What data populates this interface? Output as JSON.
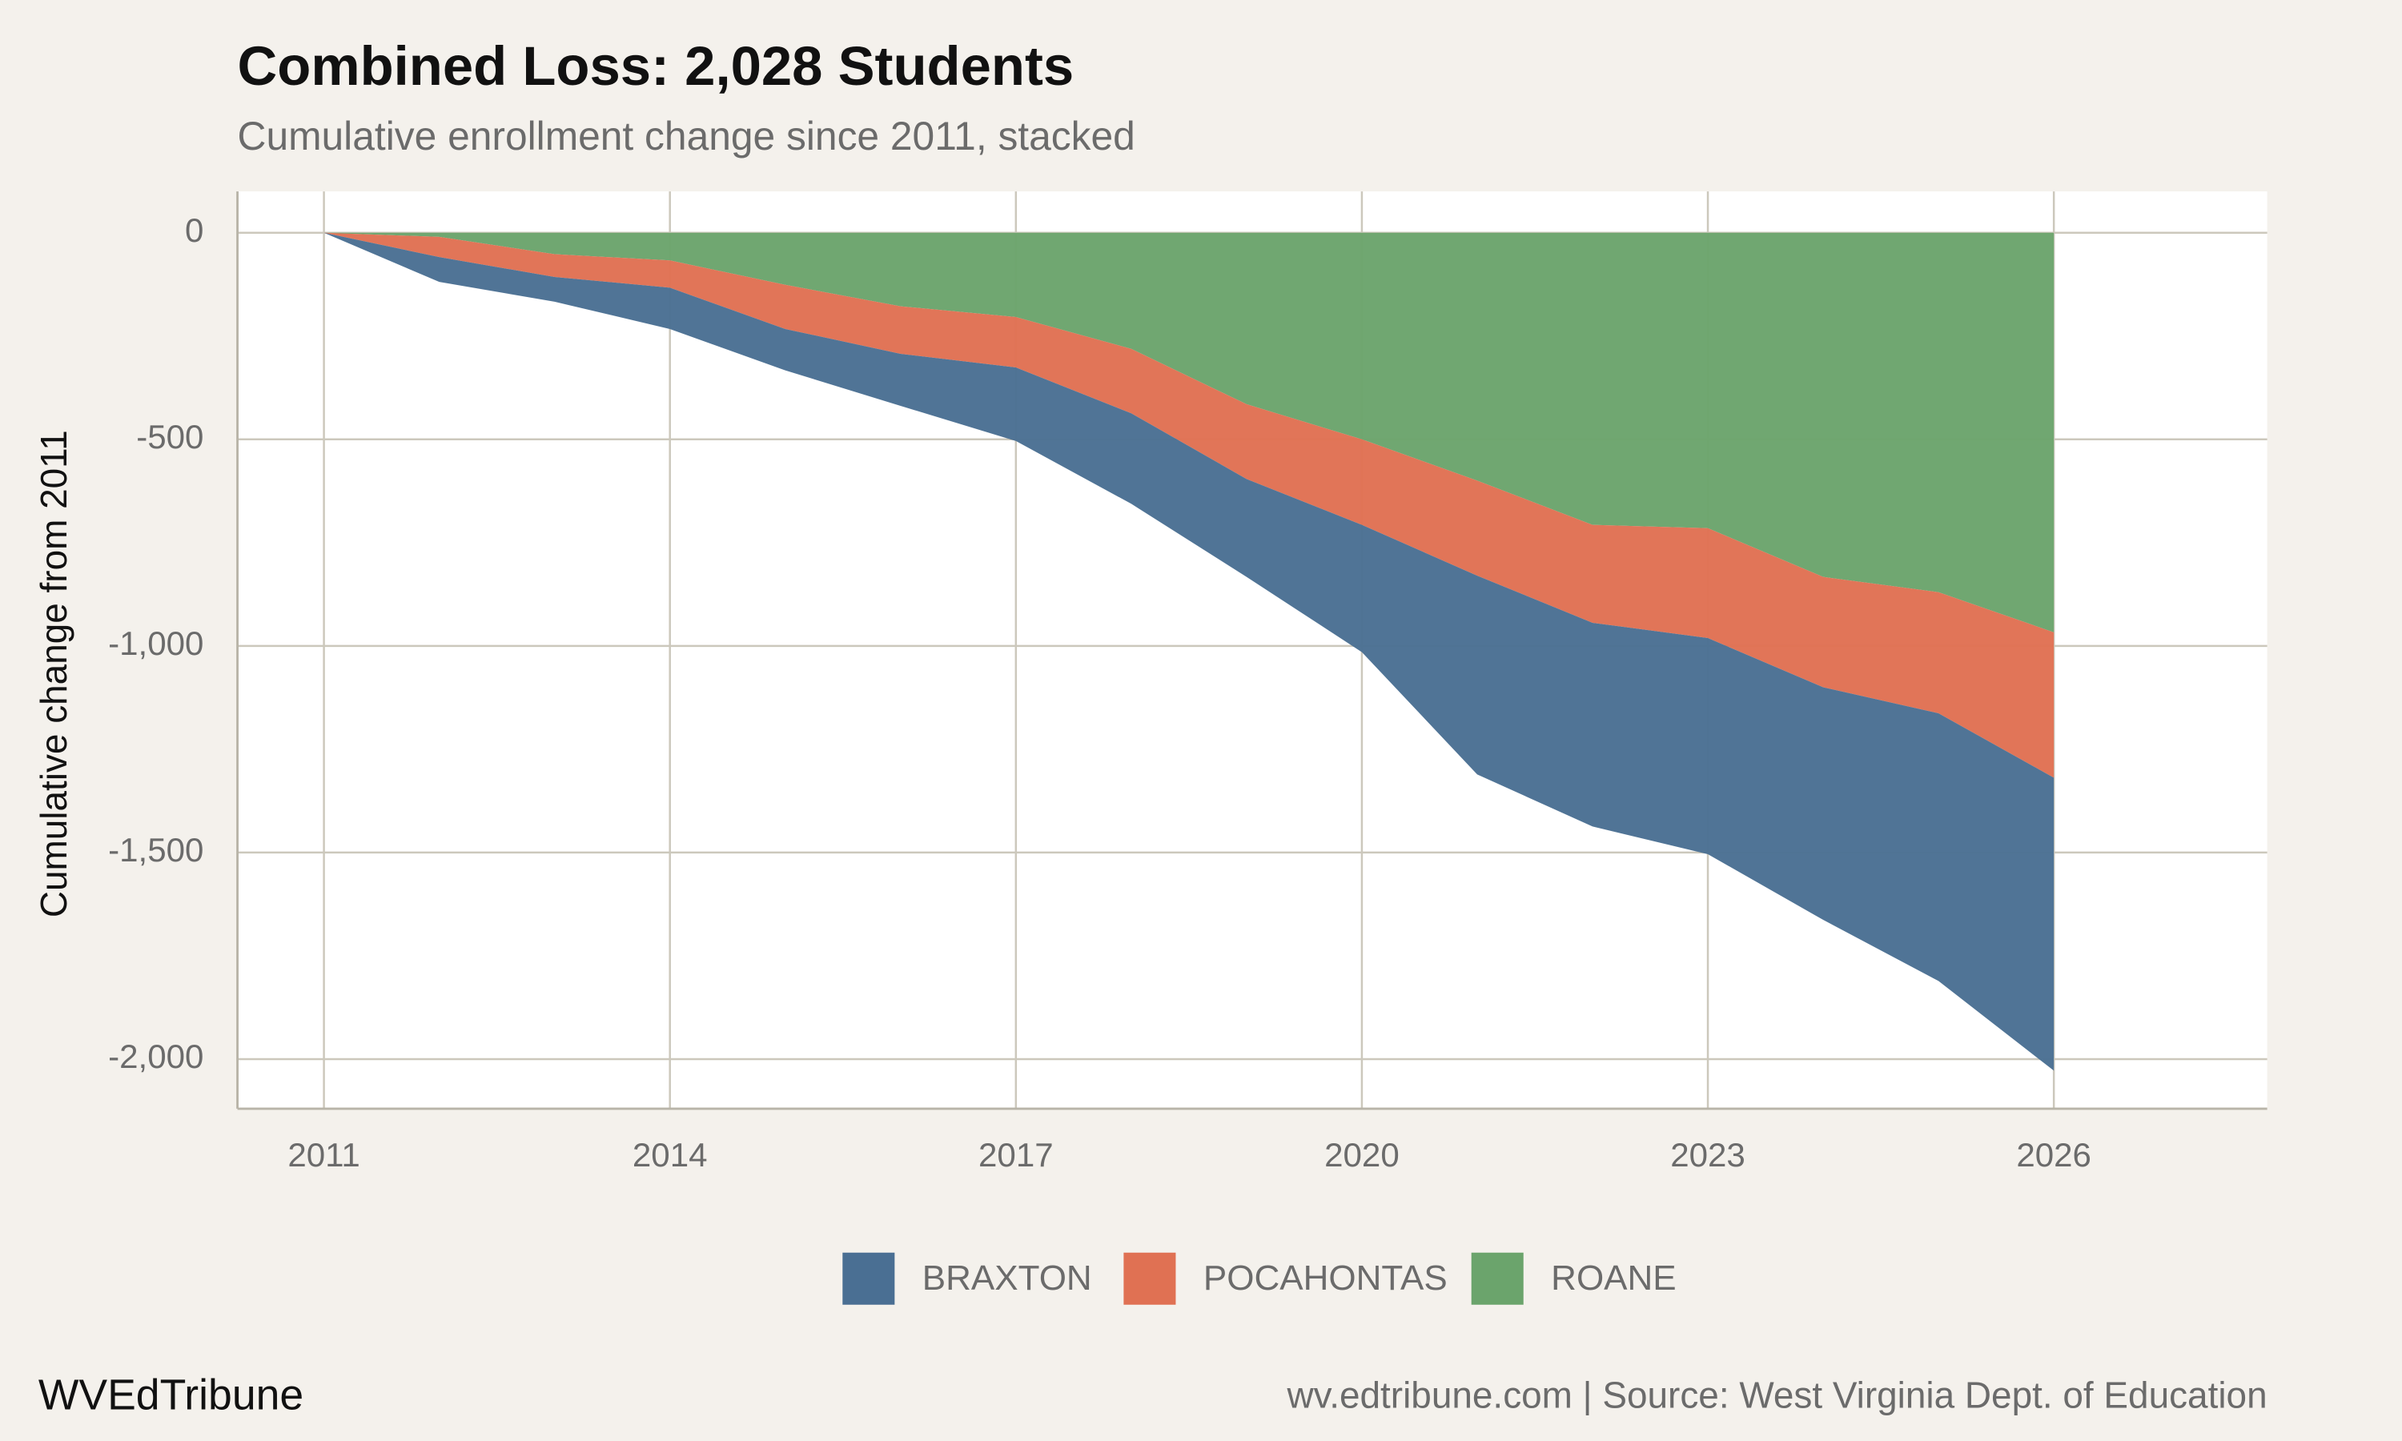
{
  "chart_data": {
    "type": "stacked-area",
    "title": "Combined Loss: 2,028 Students",
    "subtitle": "Cumulative enrollment change since 2011, stacked",
    "y_label": "Cumulative change from 2011",
    "x": [
      2011,
      2012,
      2013,
      2014,
      2015,
      2016,
      2017,
      2018,
      2019,
      2020,
      2021,
      2022,
      2023,
      2024,
      2025,
      2026
    ],
    "series": [
      {
        "name": "BRAXTON",
        "color": "#4a6f93",
        "values": [
          0,
          -60,
          -60,
          -100,
          -100,
          -126,
          -178,
          -219,
          -237,
          -308,
          -481,
          -493,
          -523,
          -563,
          -648,
          -709
        ]
      },
      {
        "name": "POCAHONTAS",
        "color": "#e07153",
        "values": [
          0,
          -49,
          -55,
          -66,
          -107,
          -115,
          -122,
          -156,
          -181,
          -207,
          -230,
          -237,
          -266,
          -267,
          -293,
          -352
        ]
      },
      {
        "name": "ROANE",
        "color": "#6ba46c",
        "values": [
          0,
          -10,
          -52,
          -67,
          -126,
          -178,
          -204,
          -281,
          -415,
          -500,
          -600,
          -707,
          -715,
          -833,
          -870,
          -967
        ]
      }
    ],
    "xlim": [
      2010.25,
      2027.85
    ],
    "xticks": [
      2011,
      2014,
      2017,
      2020,
      2023,
      2026
    ],
    "ylim": [
      -2120,
      100
    ],
    "yticks": [
      0,
      -500,
      {
        "value": -1000,
        "label": "-1,000"
      },
      {
        "value": -1500,
        "label": "-1,500"
      },
      {
        "value": -2000,
        "label": "-2,000"
      }
    ],
    "grid": true,
    "legend": "bottom",
    "brand": "WVEdTribune",
    "source": "wv.edtribune.com | Source: West Virginia Dept. of Education"
  }
}
